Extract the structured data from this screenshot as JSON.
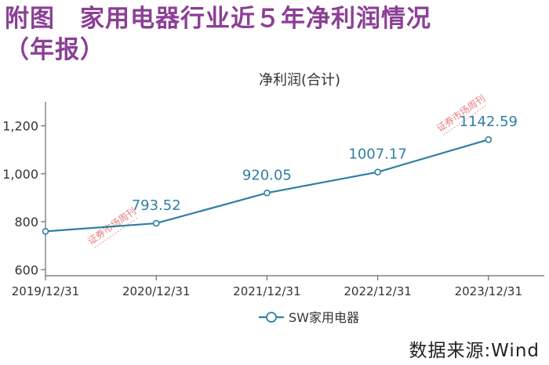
{
  "figure": {
    "title_line1": "附图　家用电器行业近５年净利润情况",
    "title_line2": "（年报）",
    "source": "数据来源:Wind",
    "title_color": "#8b3f95"
  },
  "watermark": {
    "text": "证券市场周刊",
    "color": "#e05050"
  },
  "chart_data": {
    "type": "line",
    "title": "净利润(合计)",
    "xlabel": "",
    "ylabel": "",
    "categories": [
      "2019/12/31",
      "2020/12/31",
      "2021/12/31",
      "2022/12/31",
      "2023/12/31"
    ],
    "series": [
      {
        "name": "SW家用电器",
        "values": [
          760,
          793.52,
          920.05,
          1007.17,
          1142.59
        ],
        "color": "#2f7fa5"
      }
    ],
    "data_labels": [
      "",
      "793.52",
      "920.05",
      "1007.17",
      "1142.59"
    ],
    "yticks": [
      600,
      800,
      1000,
      1200
    ],
    "ytick_labels": [
      "600",
      "800",
      "1,000",
      "1,200"
    ],
    "ylim": [
      575,
      1300
    ],
    "grid": false,
    "legend_position": "bottom-left"
  }
}
